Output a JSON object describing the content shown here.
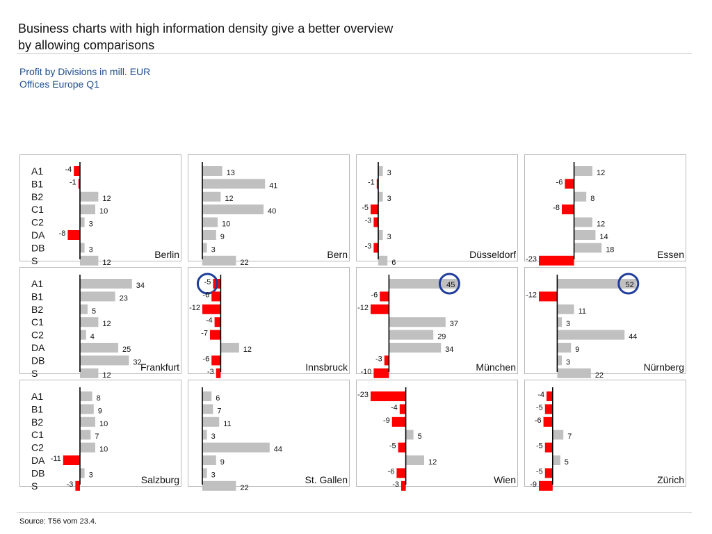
{
  "headline": {
    "line1": "Business charts with high information density give a better overview",
    "line2": "by allowing comparisons"
  },
  "subtitle": {
    "line1": "Profit by Divisions in mill. EUR",
    "line2": "Offices Europe Q1"
  },
  "source": "Source: T56 vom 23.4.",
  "colors": {
    "positive": "#c0c0c0",
    "negative": "#ff0000",
    "highlight": "#1f3d99",
    "axis": "#000000"
  },
  "chart_data": {
    "type": "bar",
    "orientation": "horizontal",
    "title": "Profit by Divisions in mill. EUR – Offices Europe Q1",
    "categories": [
      "A1",
      "B1",
      "B2",
      "C1",
      "C2",
      "DA",
      "DB",
      "S"
    ],
    "xlim": [
      -25,
      55
    ],
    "grid": false,
    "highlighted": [
      {
        "office": "Innsbruck",
        "category": "A1",
        "value": -5
      },
      {
        "office": "München",
        "category": "A1",
        "value": 45
      },
      {
        "office": "Nürnberg",
        "category": "A1",
        "value": 52
      }
    ],
    "series": [
      {
        "name": "Berlin",
        "values": [
          -4,
          -1,
          12,
          10,
          3,
          -8,
          3,
          12
        ]
      },
      {
        "name": "Bern",
        "values": [
          13,
          41,
          12,
          40,
          10,
          9,
          3,
          22
        ]
      },
      {
        "name": "Düsseldorf",
        "values": [
          3,
          -1,
          3,
          -5,
          -3,
          3,
          -3,
          6
        ]
      },
      {
        "name": "Essen",
        "values": [
          12,
          -6,
          8,
          -8,
          12,
          14,
          18,
          -23
        ]
      },
      {
        "name": "Frankfurt",
        "values": [
          34,
          23,
          5,
          12,
          4,
          25,
          32,
          12
        ]
      },
      {
        "name": "Innsbruck",
        "values": [
          -5,
          -6,
          -12,
          -4,
          -7,
          12,
          -6,
          -3
        ]
      },
      {
        "name": "München",
        "values": [
          45,
          -6,
          -12,
          37,
          29,
          34,
          -3,
          -10
        ]
      },
      {
        "name": "Nürnberg",
        "values": [
          52,
          -12,
          11,
          3,
          44,
          9,
          3,
          22
        ]
      },
      {
        "name": "Salzburg",
        "values": [
          8,
          9,
          10,
          7,
          10,
          -11,
          3,
          -3
        ]
      },
      {
        "name": "St. Gallen",
        "values": [
          6,
          7,
          11,
          3,
          44,
          9,
          3,
          22
        ]
      },
      {
        "name": "Wien",
        "values": [
          -23,
          -4,
          -9,
          5,
          -5,
          12,
          -6,
          -3
        ]
      },
      {
        "name": "Zürich",
        "values": [
          -4,
          -5,
          -6,
          7,
          -5,
          5,
          -5,
          -9
        ]
      }
    ]
  }
}
